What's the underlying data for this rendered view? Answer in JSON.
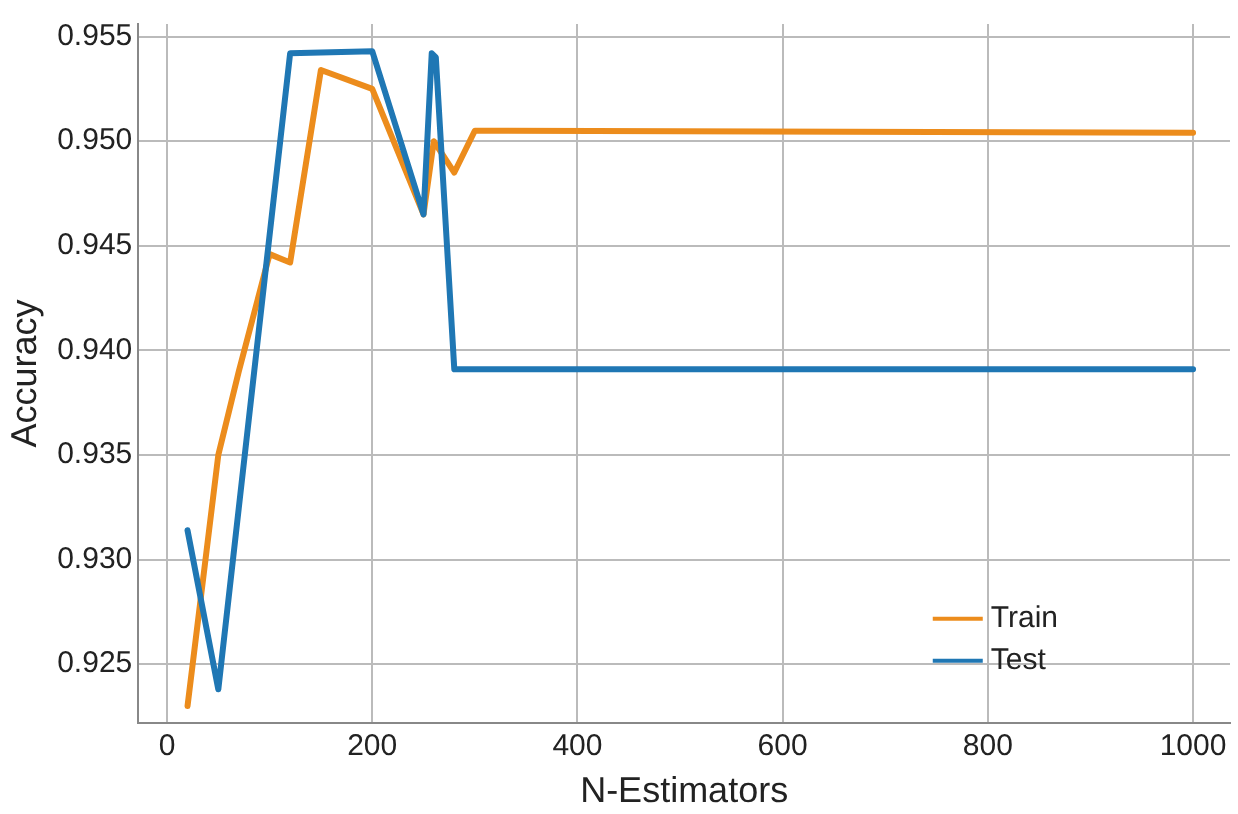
{
  "chart_data": {
    "type": "line",
    "xlabel": "N-Estimators",
    "ylabel": "Accuracy",
    "xlim": [
      -28,
      1036
    ],
    "ylim": [
      0.9222,
      0.9556
    ],
    "xticks": [
      0,
      200,
      400,
      600,
      800,
      1000
    ],
    "yticks": [
      {
        "value": 0.925,
        "label": "0.925"
      },
      {
        "value": 0.93,
        "label": "0.930"
      },
      {
        "value": 0.935,
        "label": "0.935"
      },
      {
        "value": 0.94,
        "label": "0.940"
      },
      {
        "value": 0.945,
        "label": "0.945"
      },
      {
        "value": 0.95,
        "label": "0.950"
      },
      {
        "value": 0.955,
        "label": "0.955"
      }
    ],
    "grid": true,
    "legend": "bottom right",
    "marker": "none",
    "line_style": "solid",
    "series": [
      {
        "name": "Train",
        "color": "#ec8c1c",
        "x": [
          20,
          50,
          70,
          100,
          120,
          150,
          200,
          250,
          260,
          280,
          300,
          1000
        ],
        "values": [
          0.923,
          0.935,
          0.939,
          0.9446,
          0.9442,
          0.9534,
          0.9525,
          0.9465,
          0.95,
          0.9485,
          0.9505,
          0.9504
        ]
      },
      {
        "name": "Test",
        "color": "#1f77b4",
        "x": [
          20,
          50,
          120,
          200,
          250,
          258,
          262,
          280,
          1000
        ],
        "values": [
          0.9314,
          0.9238,
          0.9542,
          0.9543,
          0.9465,
          0.9542,
          0.954,
          0.9391,
          0.9391
        ]
      }
    ]
  }
}
